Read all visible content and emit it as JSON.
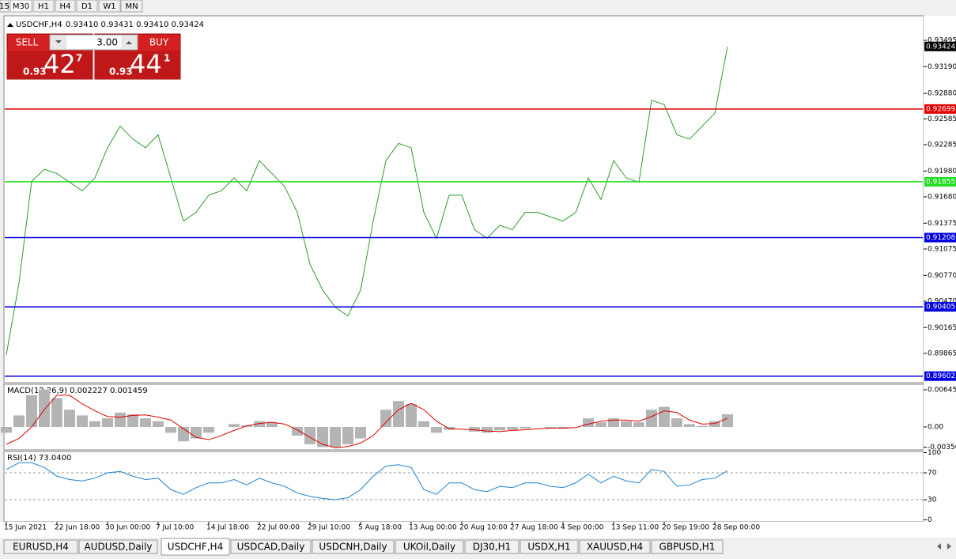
{
  "toolbar": {
    "timeframes": [
      "15",
      "M30",
      "H1",
      "H4",
      "D1",
      "W1",
      "MN"
    ],
    "active": 1
  },
  "trade_panel": {
    "sell": "SELL",
    "lot": "3.00",
    "buy": "BUY",
    "sell_price": {
      "big_figure": "0.93",
      "pips": "42",
      "fraction": "7"
    },
    "buy_price": {
      "big_figure": "0.93",
      "pips": "44",
      "fraction": "1"
    }
  },
  "chart_data": [
    {
      "type": "line",
      "title": "USDCHF,H4",
      "subtitle": "0.93410 0.93431 0.93410 0.93424",
      "color": "#2e9b2e",
      "categories": [
        "15 Jun 2021",
        null,
        null,
        null,
        "22 Jun 18:00",
        null,
        null,
        null,
        "30 Jun 00:00",
        null,
        null,
        null,
        "7 Jul 10:00",
        null,
        null,
        null,
        "14 Jul 18:00",
        null,
        null,
        null,
        "22 Jul 00:00",
        null,
        null,
        null,
        "29 Jul 10:00",
        null,
        null,
        null,
        "5 Aug 18:00",
        null,
        null,
        null,
        "13 Aug 00:00",
        null,
        null,
        null,
        "20 Aug 10:00",
        null,
        null,
        null,
        "27 Aug 18:00",
        null,
        null,
        null,
        "4 Sep 00:00",
        null,
        null,
        null,
        "13 Sep 11:00",
        null,
        null,
        null,
        "20 Sep 19:00",
        null,
        null,
        null,
        "28 Sep 00:00",
        null
      ],
      "values": [
        0.8985,
        0.9068,
        0.9186,
        0.92,
        0.9195,
        0.9185,
        0.9175,
        0.919,
        0.9225,
        0.925,
        0.9235,
        0.9225,
        0.924,
        0.919,
        0.914,
        0.915,
        0.917,
        0.9175,
        0.919,
        0.9175,
        0.921,
        0.9195,
        0.918,
        0.915,
        0.909,
        0.906,
        0.904,
        0.903,
        0.906,
        0.914,
        0.921,
        0.923,
        0.9225,
        0.915,
        0.912,
        0.917,
        0.917,
        0.913,
        0.912,
        0.9135,
        0.913,
        0.915,
        0.915,
        0.9145,
        0.914,
        0.915,
        0.919,
        0.9165,
        0.921,
        0.919,
        0.9185,
        0.928,
        0.9275,
        0.924,
        0.9235,
        0.925,
        0.9265,
        0.9342
      ],
      "ylim": [
        0.89535,
        0.93761
      ],
      "yticks": [
        0.93495,
        {
          "value": 0.9319,
          "label": "0.93190"
        },
        {
          "value": 0.9288,
          "label": "0.92880"
        },
        0.92585,
        0.92285,
        {
          "value": 0.9198,
          "label": "0.91980"
        },
        {
          "value": 0.9168,
          "label": "0.91680"
        },
        0.91375,
        0.91075,
        {
          "value": 0.9077,
          "label": "0.90770"
        },
        {
          "value": 0.9047,
          "label": "0.90470"
        },
        0.90165,
        0.89865
      ],
      "levels": [
        {
          "value": 0.92699,
          "color": "#e00000"
        },
        {
          "value": 0.91855,
          "color": "#22dd22"
        },
        {
          "value": 0.91208,
          "color": "#0000dd"
        },
        {
          "value": 0.90405,
          "color": "#0000dd"
        },
        {
          "value": 0.89602,
          "color": "#0000dd"
        }
      ],
      "last": 0.93424
    },
    {
      "type": "bar",
      "title": "MACD(12,26,9) 0.002227 0.001459",
      "series": [
        {
          "type": "bar",
          "color": "#b4b4b4",
          "values": [
            -0.001,
            0.002,
            0.0055,
            0.0065,
            0.005,
            0.003,
            0.002,
            0.001,
            0.0015,
            0.0025,
            0.0022,
            0.0015,
            0.001,
            -0.001,
            -0.0025,
            -0.002,
            -0.001,
            0,
            0.0005,
            0.0003,
            0.001,
            0.0008,
            0,
            -0.0015,
            -0.003,
            -0.0035,
            -0.0035,
            -0.003,
            -0.002,
            0,
            0.003,
            0.0045,
            0.004,
            0.001,
            -0.001,
            -0.0005,
            0,
            -0.0008,
            -0.001,
            -0.0006,
            -0.0005,
            -0.0003,
            0,
            -0.0002,
            -0.0003,
            0,
            0.0015,
            0.0008,
            0.0015,
            0.001,
            0.0008,
            0.003,
            0.0035,
            0.0015,
            0.0005,
            0.0002,
            0.001,
            0.0022
          ]
        },
        {
          "type": "line",
          "color": "#e00000",
          "values": [
            -0.003,
            -0.002,
            0,
            0.003,
            0.0055,
            0.0055,
            0.004,
            0.0028,
            0.0018,
            0.0017,
            0.002,
            0.0021,
            0.0017,
            0.0012,
            -0.0003,
            -0.0018,
            -0.0022,
            -0.0015,
            -0.0006,
            0.0002,
            0.0006,
            0.0008,
            0.0005,
            -0.0005,
            -0.0018,
            -0.003,
            -0.0036,
            -0.0034,
            -0.0028,
            -0.0015,
            0.0008,
            0.003,
            0.0041,
            0.003,
            0.001,
            -0.0003,
            -0.0004,
            -0.0005,
            -0.0007,
            -0.0008,
            -0.0006,
            -0.0005,
            -0.0003,
            -0.0002,
            -0.0002,
            -0.0001,
            0.0005,
            0.001,
            0.0012,
            0.0012,
            0.001,
            0.0018,
            0.0028,
            0.0025,
            0.0012,
            0.0005,
            0.0006,
            0.0015
          ]
        }
      ],
      "ylim": [
        -0.00384,
        0.00741
      ],
      "yticks": [
        0.006451,
        {
          "value": 0,
          "label": "0.00"
        },
        -0.003504
      ]
    },
    {
      "type": "line",
      "title": "RSI(14) 73.0400",
      "color": "#1e82d2",
      "values": [
        75,
        85,
        85,
        78,
        65,
        60,
        58,
        62,
        70,
        72,
        65,
        60,
        62,
        45,
        38,
        48,
        55,
        55,
        60,
        52,
        62,
        55,
        50,
        40,
        35,
        32,
        30,
        33,
        45,
        65,
        80,
        82,
        78,
        45,
        38,
        55,
        55,
        45,
        42,
        50,
        48,
        55,
        55,
        50,
        48,
        55,
        68,
        55,
        65,
        58,
        55,
        75,
        72,
        50,
        52,
        60,
        62,
        73.04
      ],
      "ylim": [
        -2.9,
        100.6
      ],
      "yticks": [
        100,
        70,
        30,
        0
      ]
    }
  ],
  "tabs": [
    "EURUSD,H4",
    "AUDUSD,Daily",
    "USDCHF,H4",
    "USDCAD,Daily",
    "USDCNH,Daily",
    "UKOil,Daily",
    "DJ30,H1",
    "USDX,H1",
    "XAUUSD,H4",
    "GBPUSD,H1"
  ],
  "active_tab": 2
}
